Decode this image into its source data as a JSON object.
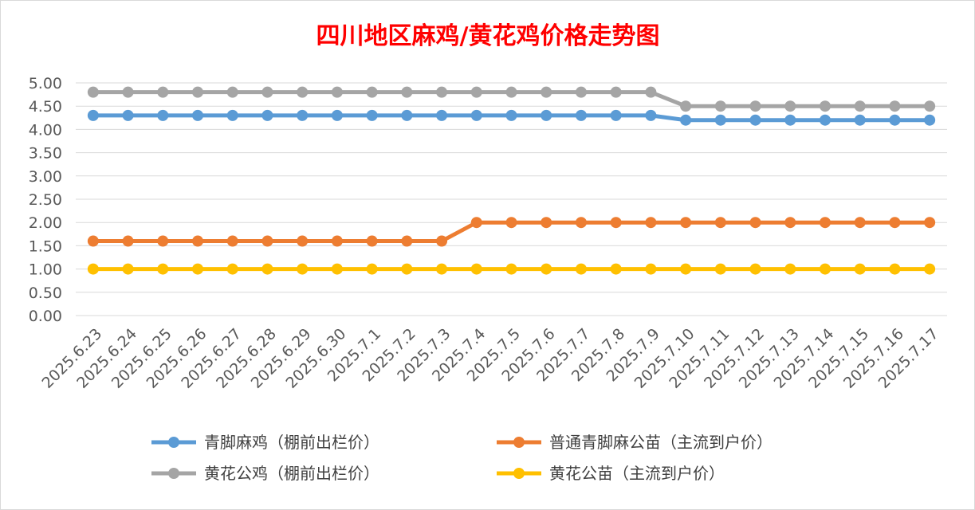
{
  "chart_data": {
    "type": "line",
    "title": "四川地区麻鸡/黄花鸡价格走势图",
    "xlabel": "",
    "ylabel": "",
    "ylim": [
      0,
      5
    ],
    "yticks": [
      "0.00",
      "0.50",
      "1.00",
      "1.50",
      "2.00",
      "2.50",
      "3.00",
      "3.50",
      "4.00",
      "4.50",
      "5.00"
    ],
    "grid": "horizontal",
    "legend_position": "bottom",
    "categories": [
      "2025.6.23",
      "2025.6.24",
      "2025.6.25",
      "2025.6.26",
      "2025.6.27",
      "2025.6.28",
      "2025.6.29",
      "2025.6.30",
      "2025.7.1",
      "2025.7.2",
      "2025.7.3",
      "2025.7.4",
      "2025.7.5",
      "2025.7.6",
      "2025.7.7",
      "2025.7.8",
      "2025.7.9",
      "2025.7.10",
      "2025.7.11",
      "2025.7.12",
      "2025.7.13",
      "2025.7.14",
      "2025.7.15",
      "2025.7.16",
      "2025.7.17"
    ],
    "series": [
      {
        "name": "青脚麻鸡（棚前出栏价）",
        "color": "#5b9bd5",
        "values": [
          4.3,
          4.3,
          4.3,
          4.3,
          4.3,
          4.3,
          4.3,
          4.3,
          4.3,
          4.3,
          4.3,
          4.3,
          4.3,
          4.3,
          4.3,
          4.3,
          4.3,
          4.2,
          4.2,
          4.2,
          4.2,
          4.2,
          4.2,
          4.2,
          4.2
        ]
      },
      {
        "name": "普通青脚麻公苗（主流到户价）",
        "color": "#ed7d31",
        "values": [
          1.6,
          1.6,
          1.6,
          1.6,
          1.6,
          1.6,
          1.6,
          1.6,
          1.6,
          1.6,
          1.6,
          2.0,
          2.0,
          2.0,
          2.0,
          2.0,
          2.0,
          2.0,
          2.0,
          2.0,
          2.0,
          2.0,
          2.0,
          2.0,
          2.0
        ]
      },
      {
        "name": "黄花公鸡（棚前出栏价）",
        "color": "#a5a5a5",
        "values": [
          4.8,
          4.8,
          4.8,
          4.8,
          4.8,
          4.8,
          4.8,
          4.8,
          4.8,
          4.8,
          4.8,
          4.8,
          4.8,
          4.8,
          4.8,
          4.8,
          4.8,
          4.5,
          4.5,
          4.5,
          4.5,
          4.5,
          4.5,
          4.5,
          4.5
        ]
      },
      {
        "name": "黄花公苗（主流到户价）",
        "color": "#ffc000",
        "values": [
          1.0,
          1.0,
          1.0,
          1.0,
          1.0,
          1.0,
          1.0,
          1.0,
          1.0,
          1.0,
          1.0,
          1.0,
          1.0,
          1.0,
          1.0,
          1.0,
          1.0,
          1.0,
          1.0,
          1.0,
          1.0,
          1.0,
          1.0,
          1.0,
          1.0
        ]
      }
    ]
  }
}
